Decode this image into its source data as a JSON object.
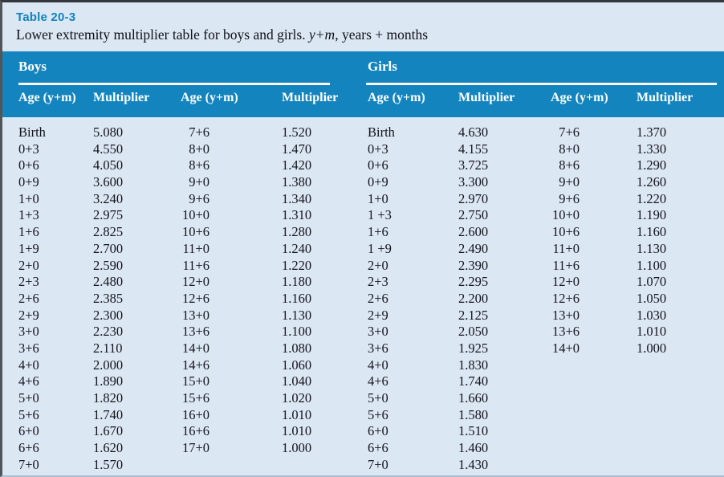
{
  "colors": {
    "page_background": "#dbe7f2",
    "band_background": "#1484be",
    "accent_text": "#0f83be",
    "body_text": "#14141e",
    "rule": "#ffffff"
  },
  "title": {
    "id": "Table 20-3"
  },
  "caption": {
    "lead": "Lower extremity multiplier table for boys and girls. ",
    "italic": "y+m",
    "tail": ", years + months"
  },
  "sections": [
    {
      "label": "Boys",
      "headers": [
        "Age (y+m)",
        "Multiplier",
        "Age (y+m)",
        "Multiplier"
      ],
      "pairs_a": [
        [
          "Birth",
          "5.080"
        ],
        [
          "0+3",
          "4.550"
        ],
        [
          "0+6",
          "4.050"
        ],
        [
          "0+9",
          "3.600"
        ],
        [
          "1+0",
          "3.240"
        ],
        [
          "1+3",
          "2.975"
        ],
        [
          "1+6",
          "2.825"
        ],
        [
          "1+9",
          "2.700"
        ],
        [
          "2+0",
          "2.590"
        ],
        [
          "2+3",
          "2.480"
        ],
        [
          "2+6",
          "2.385"
        ],
        [
          "2+9",
          "2.300"
        ],
        [
          "3+0",
          "2.230"
        ],
        [
          "3+6",
          "2.110"
        ],
        [
          "4+0",
          "2.000"
        ],
        [
          "4+6",
          "1.890"
        ],
        [
          "5+0",
          "1.820"
        ],
        [
          "5+6",
          "1.740"
        ],
        [
          "6+0",
          "1.670"
        ],
        [
          "6+6",
          "1.620"
        ],
        [
          "7+0",
          "1.570"
        ]
      ],
      "pairs_b": [
        [
          "7+6",
          "1.520"
        ],
        [
          "8+0",
          "1.470"
        ],
        [
          "8+6",
          "1.420"
        ],
        [
          "9+0",
          "1.380"
        ],
        [
          "9+6",
          "1.340"
        ],
        [
          "10+0",
          "1.310"
        ],
        [
          "10+6",
          "1.280"
        ],
        [
          "11+0",
          "1.240"
        ],
        [
          "11+6",
          "1.220"
        ],
        [
          "12+0",
          "1.180"
        ],
        [
          "12+6",
          "1.160"
        ],
        [
          "13+0",
          "1.130"
        ],
        [
          "13+6",
          "1.100"
        ],
        [
          "14+0",
          "1.080"
        ],
        [
          "14+6",
          "1.060"
        ],
        [
          "15+0",
          "1.040"
        ],
        [
          "15+6",
          "1.020"
        ],
        [
          "16+0",
          "1.010"
        ],
        [
          "16+6",
          "1.010"
        ],
        [
          "17+0",
          "1.000"
        ]
      ]
    },
    {
      "label": "Girls",
      "headers": [
        "Age (y+m)",
        "Multiplier",
        "Age (y+m)",
        "Multiplier"
      ],
      "pairs_a": [
        [
          "Birth",
          "4.630"
        ],
        [
          "0+3",
          "4.155"
        ],
        [
          "0+6",
          "3.725"
        ],
        [
          "0+9",
          "3.300"
        ],
        [
          "1+0",
          "2.970"
        ],
        [
          "1 +3",
          "2.750"
        ],
        [
          "1+6",
          "2.600"
        ],
        [
          "1 +9",
          "2.490"
        ],
        [
          "2+0",
          "2.390"
        ],
        [
          "2+3",
          "2.295"
        ],
        [
          "2+6",
          "2.200"
        ],
        [
          "2+9",
          "2.125"
        ],
        [
          "3+0",
          "2.050"
        ],
        [
          "3+6",
          "1.925"
        ],
        [
          "4+0",
          "1.830"
        ],
        [
          "4+6",
          "1.740"
        ],
        [
          "5+0",
          "1.660"
        ],
        [
          "5+6",
          "1.580"
        ],
        [
          "6+0",
          "1.510"
        ],
        [
          "6+6",
          "1.460"
        ],
        [
          "7+0",
          "1.430"
        ]
      ],
      "pairs_b": [
        [
          "7+6",
          "1.370"
        ],
        [
          "8+0",
          "1.330"
        ],
        [
          "8+6",
          "1.290"
        ],
        [
          "9+0",
          "1.260"
        ],
        [
          "9+6",
          "1.220"
        ],
        [
          "10+0",
          "1.190"
        ],
        [
          "10+6",
          "1.160"
        ],
        [
          "11+0",
          "1.130"
        ],
        [
          "11+6",
          "1.100"
        ],
        [
          "12+0",
          "1.070"
        ],
        [
          "12+6",
          "1.050"
        ],
        [
          "13+0",
          "1.030"
        ],
        [
          "13+6",
          "1.010"
        ],
        [
          "14+0",
          "1.000"
        ]
      ]
    }
  ]
}
